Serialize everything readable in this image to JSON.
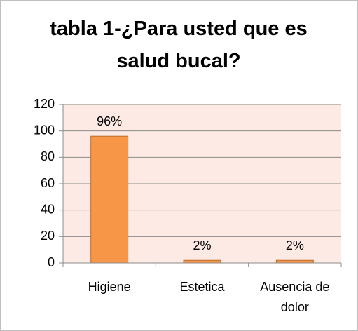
{
  "chart_data": {
    "type": "bar",
    "title": "tabla 1-¿Para usted que es salud bucal?",
    "categories": [
      "Higiene",
      "Estetica",
      "Ausencia de dolor"
    ],
    "values": [
      96,
      2,
      2
    ],
    "value_labels": [
      "96%",
      "2%",
      "2%"
    ],
    "color": "#f79646",
    "ylim": [
      0,
      120
    ],
    "yticks": [
      0,
      20,
      40,
      60,
      80,
      100,
      120
    ],
    "grid": true
  }
}
